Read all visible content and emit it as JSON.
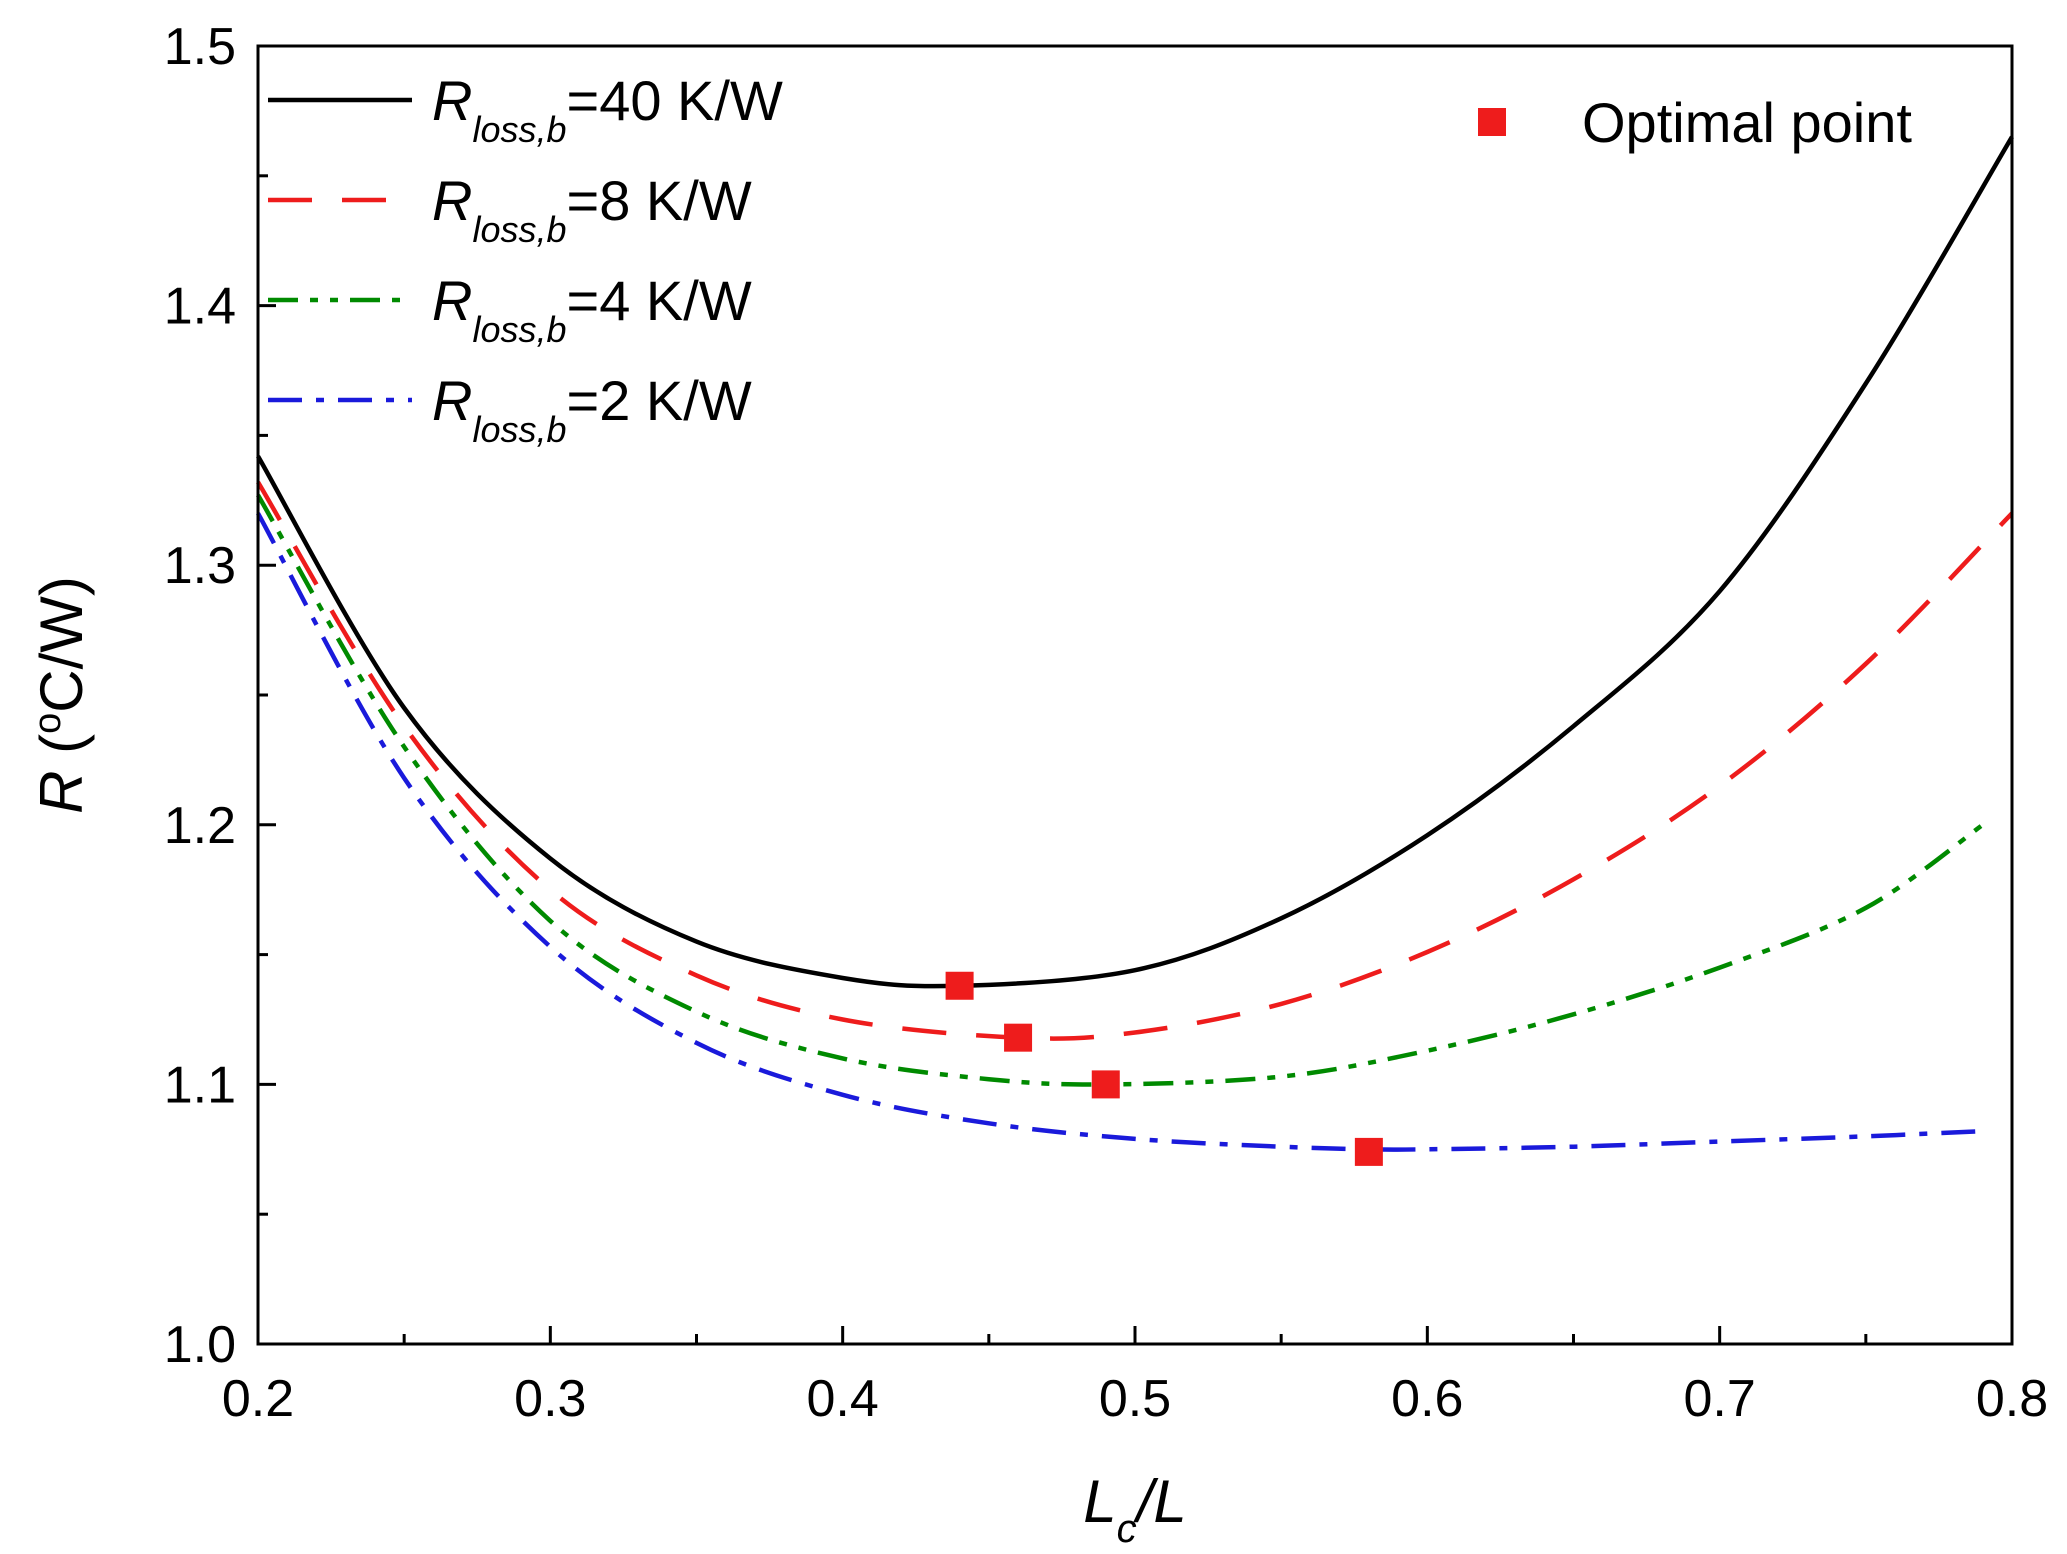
{
  "chart_data": {
    "type": "line",
    "xlabel": {
      "main": "L",
      "sub": "c",
      "tail": "/L"
    },
    "ylabel": {
      "main": "R",
      "open": " (",
      "sup": "o",
      "tail": "C/W)"
    },
    "xlim": [
      0.2,
      0.8
    ],
    "ylim": [
      1.0,
      1.5
    ],
    "xticks": [
      "0.2",
      "0.3",
      "0.4",
      "0.5",
      "0.6",
      "0.7",
      "0.8"
    ],
    "yticks": [
      "1.0",
      "1.1",
      "1.2",
      "1.3",
      "1.4",
      "1.5"
    ],
    "grid": false,
    "legend_position": "top-left",
    "series": [
      {
        "name": "=40 K/W",
        "label_main": "R",
        "label_sub": "loss,b",
        "label_tail": "=40 K/W",
        "color": "#000000",
        "style": "solid",
        "x": [
          0.2,
          0.25,
          0.3,
          0.35,
          0.4,
          0.44,
          0.5,
          0.55,
          0.6,
          0.65,
          0.7,
          0.75,
          0.8
        ],
        "y": [
          1.342,
          1.245,
          1.187,
          1.155,
          1.141,
          1.138,
          1.144,
          1.164,
          1.196,
          1.238,
          1.29,
          1.37,
          1.465
        ]
      },
      {
        "name": "=8 K/W",
        "label_main": "R",
        "label_sub": "loss,b",
        "label_tail": "=8 K/W",
        "color": "#ee1c1c",
        "style": "dashed",
        "x": [
          0.2,
          0.25,
          0.3,
          0.35,
          0.4,
          0.46,
          0.5,
          0.55,
          0.6,
          0.65,
          0.7,
          0.75,
          0.8
        ],
        "y": [
          1.332,
          1.238,
          1.175,
          1.142,
          1.125,
          1.118,
          1.12,
          1.131,
          1.151,
          1.179,
          1.215,
          1.262,
          1.32
        ]
      },
      {
        "name": "=4 K/W",
        "label_main": "R",
        "label_sub": "loss,b",
        "label_tail": "=4 K/W",
        "color": "#008a00",
        "style": "dash-dot-dot",
        "x": [
          0.2,
          0.25,
          0.3,
          0.35,
          0.4,
          0.45,
          0.49,
          0.55,
          0.6,
          0.65,
          0.7,
          0.75,
          0.79
        ],
        "y": [
          1.327,
          1.23,
          1.163,
          1.128,
          1.11,
          1.102,
          1.1,
          1.103,
          1.113,
          1.127,
          1.145,
          1.168,
          1.2
        ]
      },
      {
        "name": "=2 K/W",
        "label_main": "R",
        "label_sub": "loss,b",
        "label_tail": "=2 K/W",
        "color": "#1a1adb",
        "style": "dash-dot",
        "x": [
          0.2,
          0.25,
          0.3,
          0.35,
          0.4,
          0.45,
          0.5,
          0.55,
          0.58,
          0.6,
          0.65,
          0.7,
          0.75,
          0.79
        ],
        "y": [
          1.32,
          1.218,
          1.153,
          1.116,
          1.096,
          1.085,
          1.079,
          1.076,
          1.075,
          1.075,
          1.076,
          1.078,
          1.08,
          1.082
        ]
      }
    ],
    "optimal_points": {
      "name": "Optimal point",
      "color": "#ee1c1c",
      "x": [
        0.44,
        0.46,
        0.49,
        0.58
      ],
      "y": [
        1.138,
        1.118,
        1.1,
        1.074
      ]
    }
  }
}
